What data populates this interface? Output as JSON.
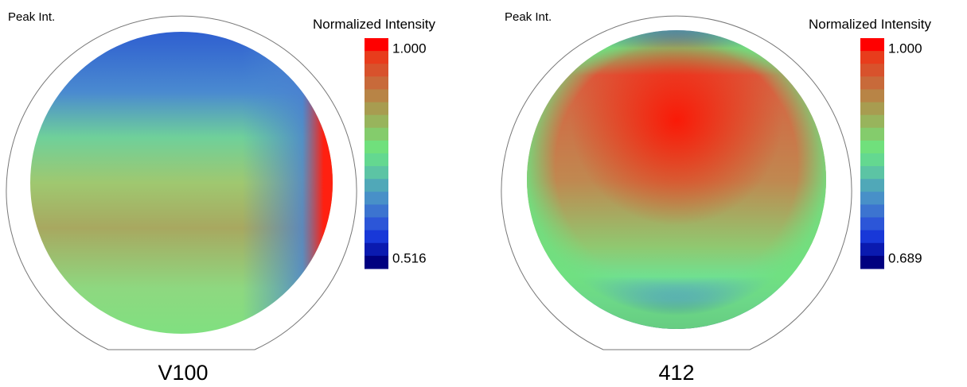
{
  "panels": [
    {
      "header": "Peak Int.",
      "legend_title": "Normalized Intensity",
      "scale_max": "1.000",
      "scale_min": "0.516",
      "caption": "V100"
    },
    {
      "header": "Peak Int.",
      "legend_title": "Normalized Intensity",
      "scale_max": "1.000",
      "scale_min": "0.689",
      "caption": "412"
    }
  ]
}
